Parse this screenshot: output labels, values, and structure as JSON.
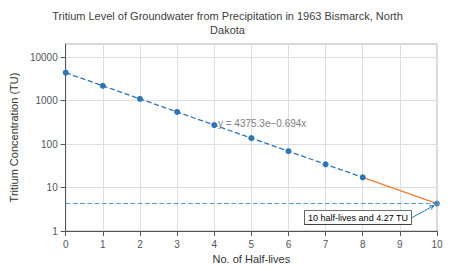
{
  "chart_data": {
    "type": "line",
    "title": "Tritium Level of Groundwater from Precipitation in 1963 Bismarck, North\nDakota",
    "xlabel": "No. of Half-lives",
    "ylabel": "Tritium Concentration (TU)",
    "log": "y",
    "grid": true,
    "xlim": [
      0,
      10
    ],
    "xticks": [
      0,
      1,
      2,
      3,
      4,
      5,
      6,
      7,
      8,
      9,
      10
    ],
    "ylim": [
      1,
      20000
    ],
    "yticks": [
      1,
      10,
      100,
      1000,
      10000
    ],
    "series": [
      {
        "type": "line",
        "x": [
          0,
          1,
          2,
          3,
          4,
          5,
          6,
          7,
          8
        ],
        "values": [
          4375.3,
          2187.65,
          1093.8,
          546.9,
          273.45,
          136.7,
          68.4,
          34.2,
          17.1
        ],
        "color": "#2e75b6",
        "line_style": "dashed",
        "marker": "circle"
      },
      {
        "type": "hline",
        "values": [
          4.27
        ],
        "color": "#5b9bd5",
        "line_style": "dashed"
      },
      {
        "type": "line",
        "x": [
          8,
          10
        ],
        "values": [
          17.1,
          4.27
        ],
        "color": "#ed7d31",
        "line_style": "solid"
      },
      {
        "type": "scatter",
        "x": [
          10
        ],
        "values": [
          4.27
        ],
        "color": "#2e75b6",
        "marker": "circle"
      }
    ],
    "annotations": [
      {
        "text": "y = 4375.3e−0.694x",
        "x": 4.1,
        "y": 230,
        "color": "#808080"
      },
      {
        "text": "10 half-lives and 4.27 TU",
        "x": 10,
        "y": 4.27,
        "arrow_color": "#2e75b6"
      }
    ]
  }
}
